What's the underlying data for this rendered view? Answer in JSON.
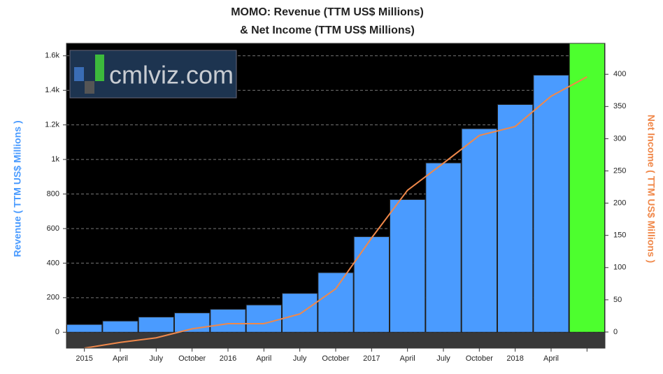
{
  "chart_data": {
    "type": "bar-line",
    "title": [
      "MOMO: Revenue (TTM US$ Millions)",
      "& Net Income (TTM US$ Millions)"
    ],
    "watermark": "cmlviz.com",
    "y_label": "Revenue ( TTM US$ Millions )",
    "y2_label": "Net Income ( TTM US$ Millions )",
    "categories": [
      "2015",
      "April",
      "July",
      "October",
      "2016",
      "April",
      "July",
      "October",
      "2017",
      "April",
      "July",
      "October",
      "2018",
      "April",
      null
    ],
    "series": [
      {
        "name": "Revenue",
        "type": "bar",
        "color": "#4a9bff",
        "colors": [
          "#4a9bff",
          "#4a9bff",
          "#4a9bff",
          "#4a9bff",
          "#4a9bff",
          "#4a9bff",
          "#4a9bff",
          "#4a9bff",
          "#4a9bff",
          "#4a9bff",
          "#4a9bff",
          "#4a9bff",
          "#4a9bff",
          "#4a9bff",
          "#4dff2e"
        ],
        "values": [
          45,
          65,
          88,
          112,
          133,
          158,
          225,
          345,
          553,
          768,
          980,
          1178,
          1318,
          1488,
          1680
        ]
      },
      {
        "name": "Net Income",
        "type": "line",
        "axis": "y2",
        "color": "#f0884a",
        "values": [
          -25,
          -16,
          -9,
          5,
          13,
          13,
          28,
          67,
          146,
          220,
          262,
          305,
          319,
          366,
          396
        ]
      }
    ],
    "ylim": [
      -92,
      1672
    ],
    "yticks": [
      0,
      200,
      400,
      600,
      800,
      {
        "value": 1000,
        "label": "1k"
      },
      {
        "value": 1200,
        "label": "1.2k"
      },
      {
        "value": 1400,
        "label": "1.4k"
      },
      {
        "value": 1600,
        "label": "1.6k"
      }
    ],
    "y2lim": [
      -25,
      448
    ],
    "y2ticks": [
      0,
      50,
      100,
      150,
      200,
      250,
      300,
      350,
      400
    ],
    "grid": true
  }
}
